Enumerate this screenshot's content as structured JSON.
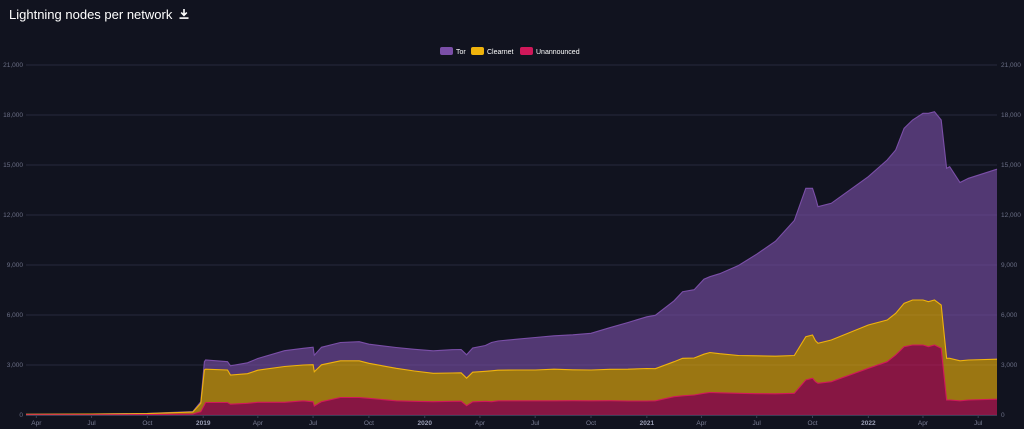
{
  "header": {
    "title": "Lightning nodes per network",
    "download_icon": "download-icon"
  },
  "colors": {
    "background": "#11131f",
    "tor": "#7b4fa8",
    "clearnet": "#f0b30c",
    "unannounced": "#d0185a"
  },
  "chart_data": {
    "type": "area",
    "stacked": true,
    "title": "Lightning nodes per network",
    "legend": [
      "Tor",
      "Clearnet",
      "Unannounced"
    ],
    "legend_position": "top-center",
    "grid": true,
    "ylim": [
      0,
      21000
    ],
    "y_ticks": [
      "0",
      "3,000",
      "6,000",
      "9,000",
      "12,000",
      "15,000",
      "18,000",
      "21,000"
    ],
    "x_ticks": [
      {
        "label": "Apr",
        "date": "2018-04-01",
        "bold": false
      },
      {
        "label": "Jul",
        "date": "2018-07-01",
        "bold": false
      },
      {
        "label": "Oct",
        "date": "2018-10-01",
        "bold": false
      },
      {
        "label": "2019",
        "date": "2019-01-01",
        "bold": true
      },
      {
        "label": "Apr",
        "date": "2019-04-01",
        "bold": false
      },
      {
        "label": "Jul",
        "date": "2019-07-01",
        "bold": false
      },
      {
        "label": "Oct",
        "date": "2019-10-01",
        "bold": false
      },
      {
        "label": "2020",
        "date": "2020-01-01",
        "bold": true
      },
      {
        "label": "Apr",
        "date": "2020-04-01",
        "bold": false
      },
      {
        "label": "Jul",
        "date": "2020-07-01",
        "bold": false
      },
      {
        "label": "Oct",
        "date": "2020-10-01",
        "bold": false
      },
      {
        "label": "2021",
        "date": "2021-01-01",
        "bold": true
      },
      {
        "label": "Apr",
        "date": "2021-04-01",
        "bold": false
      },
      {
        "label": "Jul",
        "date": "2021-07-01",
        "bold": false
      },
      {
        "label": "Oct",
        "date": "2021-10-01",
        "bold": false
      },
      {
        "label": "2022",
        "date": "2022-01-01",
        "bold": true
      },
      {
        "label": "Apr",
        "date": "2022-04-01",
        "bold": false
      },
      {
        "label": "Jul",
        "date": "2022-07-01",
        "bold": false
      }
    ],
    "x": [
      "2018-03-15",
      "2018-07-01",
      "2018-10-01",
      "2018-12-15",
      "2018-12-28",
      "2019-01-03",
      "2019-01-05",
      "2019-02-10",
      "2019-02-15",
      "2019-03-15",
      "2019-04-01",
      "2019-05-15",
      "2019-06-15",
      "2019-07-01",
      "2019-07-03",
      "2019-07-15",
      "2019-08-15",
      "2019-09-15",
      "2019-10-01",
      "2019-11-15",
      "2019-12-15",
      "2020-01-15",
      "2020-02-15",
      "2020-03-01",
      "2020-03-10",
      "2020-03-20",
      "2020-04-10",
      "2020-04-20",
      "2020-05-01",
      "2020-06-01",
      "2020-07-01",
      "2020-08-01",
      "2020-09-01",
      "2020-10-01",
      "2020-11-01",
      "2020-12-01",
      "2021-01-01",
      "2021-01-15",
      "2021-02-15",
      "2021-03-01",
      "2021-03-20",
      "2021-04-05",
      "2021-04-15",
      "2021-05-01",
      "2021-06-01",
      "2021-07-01",
      "2021-08-01",
      "2021-09-01",
      "2021-09-20",
      "2021-10-01",
      "2021-10-06",
      "2021-10-10",
      "2021-11-01",
      "2022-01-01",
      "2022-02-01",
      "2022-02-15",
      "2022-03-01",
      "2022-03-15",
      "2022-04-01",
      "2022-04-10",
      "2022-04-20",
      "2022-05-01",
      "2022-05-10",
      "2022-05-15",
      "2022-06-01",
      "2022-06-15",
      "2022-08-01"
    ],
    "series": [
      {
        "name": "Unannounced",
        "values": [
          10,
          15,
          25,
          60,
          200,
          600,
          750,
          750,
          650,
          700,
          760,
          760,
          850,
          790,
          540,
          800,
          1050,
          1050,
          1000,
          850,
          820,
          800,
          820,
          830,
          560,
          790,
          820,
          800,
          850,
          850,
          850,
          850,
          860,
          850,
          860,
          840,
          840,
          850,
          1100,
          1150,
          1200,
          1300,
          1350,
          1330,
          1300,
          1280,
          1270,
          1300,
          2100,
          2200,
          2000,
          1900,
          2000,
          2800,
          3200,
          3600,
          4100,
          4200,
          4200,
          4100,
          4200,
          4000,
          900,
          900,
          850,
          900,
          950
        ]
      },
      {
        "name": "Clearnet",
        "values": [
          30,
          40,
          60,
          120,
          500,
          2100,
          2000,
          1950,
          1750,
          1780,
          1930,
          2150,
          2150,
          2230,
          2050,
          2210,
          2200,
          2200,
          2100,
          1950,
          1820,
          1700,
          1700,
          1700,
          1650,
          1780,
          1800,
          1850,
          1840,
          1850,
          1850,
          1900,
          1850,
          1850,
          1880,
          1910,
          1950,
          1930,
          2100,
          2250,
          2220,
          2350,
          2400,
          2350,
          2270,
          2270,
          2260,
          2270,
          2600,
          2600,
          2450,
          2400,
          2500,
          2600,
          2500,
          2500,
          2600,
          2700,
          2700,
          2700,
          2700,
          2600,
          2500,
          2500,
          2400,
          2400,
          2400
        ]
      },
      {
        "name": "Tor",
        "values": [
          5,
          5,
          10,
          30,
          100,
          500,
          550,
          500,
          550,
          650,
          700,
          950,
          1000,
          1050,
          1000,
          1050,
          1100,
          1150,
          1150,
          1250,
          1300,
          1350,
          1400,
          1400,
          1400,
          1450,
          1550,
          1700,
          1750,
          1850,
          1950,
          2000,
          2100,
          2200,
          2500,
          2800,
          3100,
          3200,
          3650,
          4000,
          4100,
          4500,
          4550,
          4800,
          5400,
          6100,
          6900,
          8100,
          8900,
          8800,
          8600,
          8200,
          8200,
          8900,
          9600,
          9800,
          10500,
          10800,
          11200,
          11300,
          11300,
          11100,
          11400,
          11500,
          10700,
          10900,
          11400
        ]
      }
    ]
  }
}
